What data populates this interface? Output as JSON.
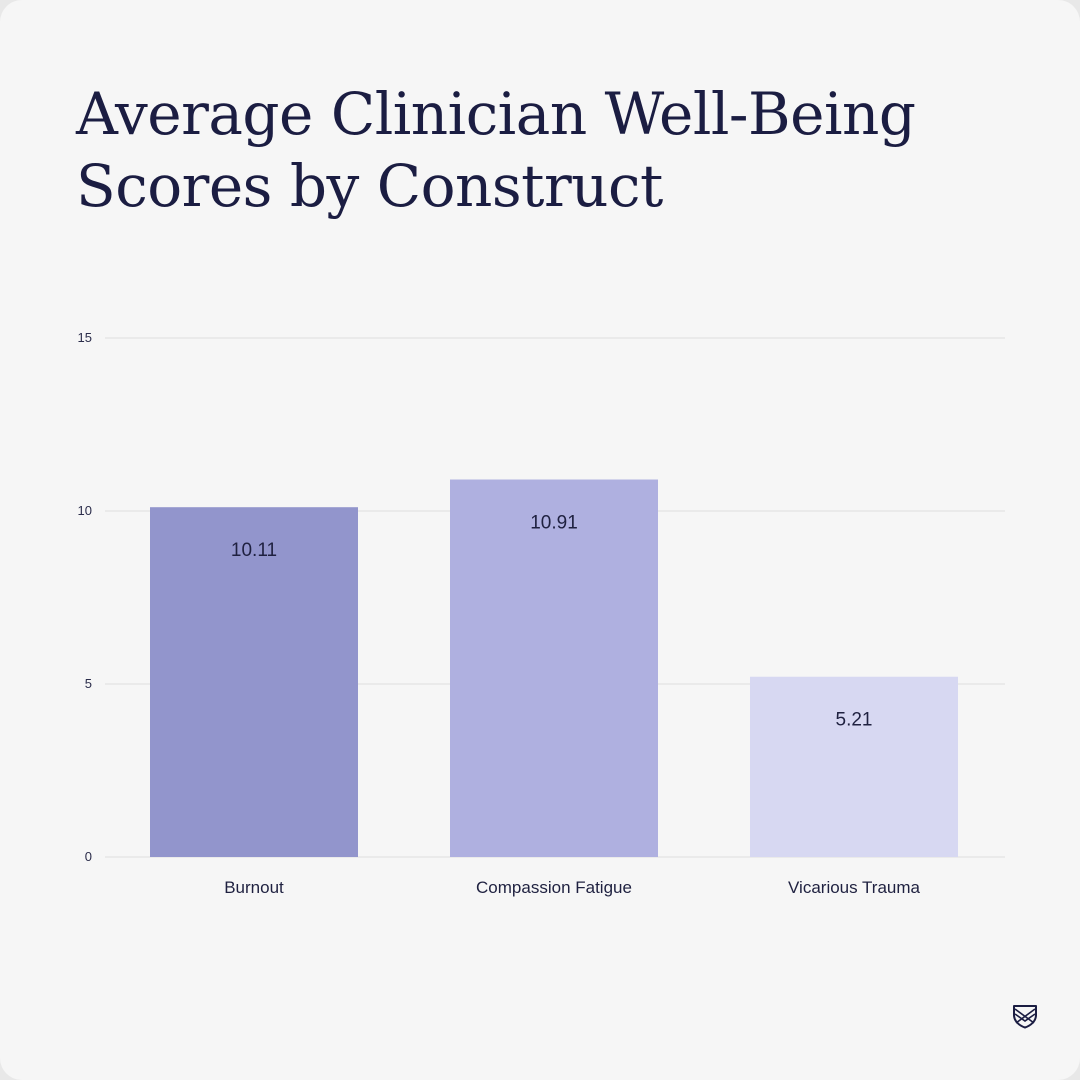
{
  "title_line1": "Average Clinician Well-Being",
  "title_line2": "Scores by Construct",
  "logo_icon": "shield-crest-icon",
  "colors": {
    "background": "#f6f6f6",
    "title": "#1b1d42",
    "grid": "#dedede"
  },
  "chart_data": {
    "type": "bar",
    "title": "Average Clinician Well-Being Scores by Construct",
    "xlabel": "",
    "ylabel": "",
    "categories": [
      "Burnout",
      "Compassion Fatigue",
      "Vicarious Trauma"
    ],
    "values": [
      10.11,
      10.91,
      5.21
    ],
    "value_labels": [
      "10.11",
      "10.91",
      "5.21"
    ],
    "bar_colors": [
      "#9295cc",
      "#afb0e0",
      "#d7d8f2"
    ],
    "ylim": [
      0,
      15
    ],
    "yticks": [
      0,
      5,
      10,
      15
    ],
    "grid": true,
    "legend": "none"
  }
}
